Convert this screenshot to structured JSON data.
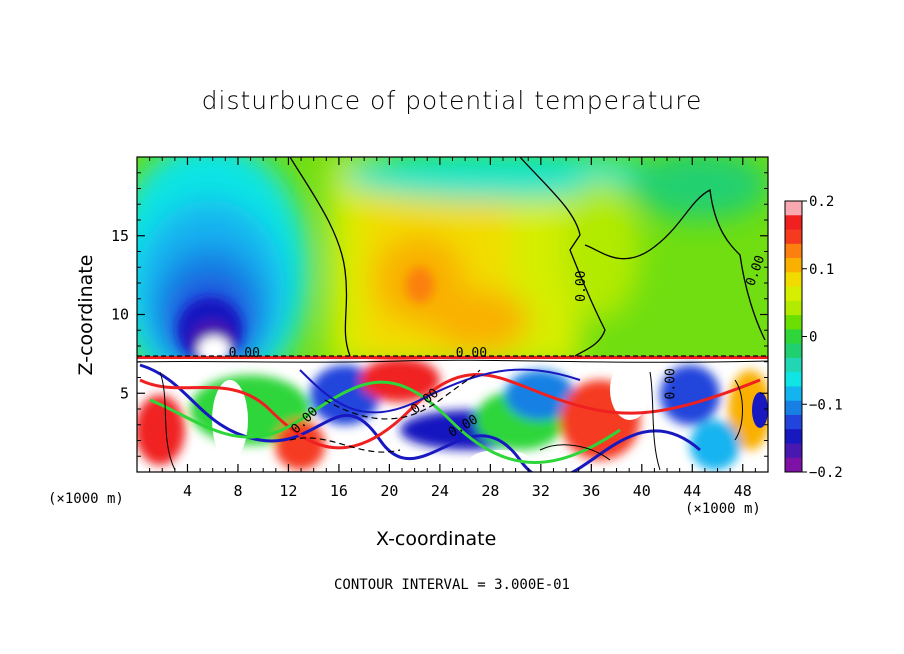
{
  "chart_data": {
    "type": "heatmap",
    "title": "disturbunce of potential temperature",
    "xlabel": "X-coordinate",
    "ylabel": "Z-coordinate",
    "x_unit_label": "(×1000 m)",
    "x_ticks": [
      4,
      8,
      12,
      16,
      20,
      24,
      28,
      32,
      36,
      40,
      44,
      48
    ],
    "y_ticks": [
      5,
      10,
      15
    ],
    "xlim": [
      0,
      50
    ],
    "ylim": [
      0,
      20
    ],
    "colorbar": {
      "ticks": [
        "0.2",
        "0.1",
        "0",
        "−0.1",
        "−0.2"
      ],
      "range": [
        -0.2,
        0.2
      ],
      "colors": [
        "#f7a8b0",
        "#f02020",
        "#f53a20",
        "#fb8010",
        "#f9b000",
        "#f2dc00",
        "#d6ee00",
        "#b2ea00",
        "#6be000",
        "#2ed63a",
        "#20d070",
        "#20d6b4",
        "#10e4e4",
        "#14b4f0",
        "#1880e4",
        "#2244dc",
        "#1818c0",
        "#4818b0",
        "#7e12a6"
      ]
    },
    "contour_labels": [
      "0.00",
      "0.00",
      "0.00",
      "0.00",
      "0.00",
      "0.00",
      "0.00",
      "0.00"
    ],
    "contour_interval_text": "CONTOUR INTERVAL = 3.000E-01",
    "grid": false
  }
}
